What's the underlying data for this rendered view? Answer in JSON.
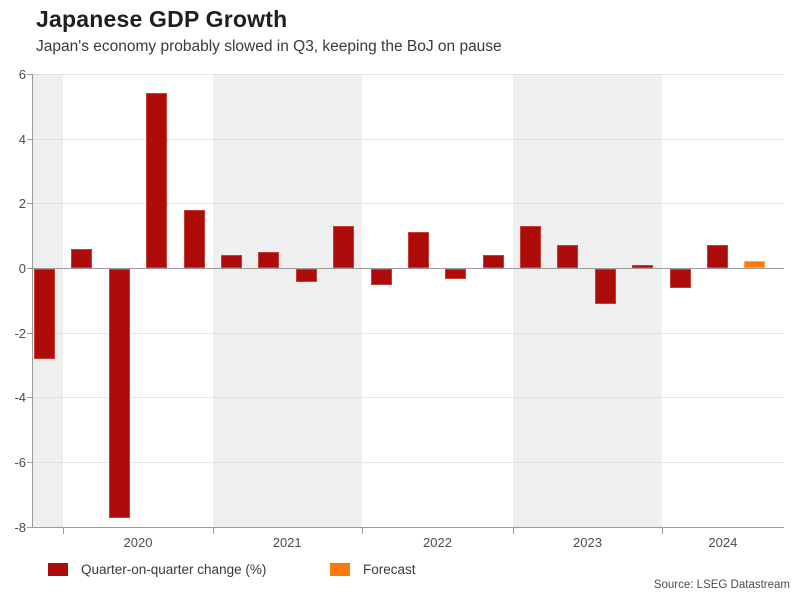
{
  "header": {
    "title": "Japanese GDP Growth",
    "subtitle": "Japan's economy probably slowed in Q3, keeping the BoJ on pause"
  },
  "legend": {
    "series_label": "Quarter-on-quarter change (%)",
    "forecast_label": "Forecast"
  },
  "source": "Source: LSEG Datastream",
  "colors": {
    "bar": "#AE0B0B",
    "forecast": "#FB7A0D",
    "year_band": "#EFEFEF",
    "axis": "#9B9B9B",
    "grid": "#D2D2D2",
    "title_text": "#1F1F1F",
    "tick_text": "#4D4D4D"
  },
  "chart_data": {
    "type": "bar",
    "title": "Japanese GDP Growth",
    "subtitle": "Japan's economy probably slowed in Q3, keeping the BoJ on pause",
    "ylabel": "Quarter-on-quarter change (%)",
    "ylim": [
      -8,
      6
    ],
    "y_ticks": [
      6,
      4,
      2,
      0,
      -2,
      -4,
      -6,
      -8
    ],
    "grid": "dotted-horizontal",
    "legend_position": "bottom",
    "x_year_labels": [
      "2020",
      "2021",
      "2022",
      "2023",
      "2024"
    ],
    "shaded_year_bands": [
      "2019",
      "2021",
      "2023"
    ],
    "categories": [
      "2019 Q4",
      "2020 Q1",
      "2020 Q2",
      "2020 Q3",
      "2020 Q4",
      "2021 Q1",
      "2021 Q2",
      "2021 Q3",
      "2021 Q4",
      "2022 Q1",
      "2022 Q2",
      "2022 Q3",
      "2022 Q4",
      "2023 Q1",
      "2023 Q2",
      "2023 Q3",
      "2023 Q4",
      "2024 Q1",
      "2024 Q2",
      "2024 Q3"
    ],
    "values": [
      -2.8,
      0.6,
      -7.7,
      5.4,
      1.8,
      0.4,
      0.5,
      -0.4,
      1.3,
      -0.5,
      1.1,
      -0.3,
      0.4,
      1.3,
      0.7,
      -1.1,
      0.1,
      -0.6,
      0.7,
      0.2
    ],
    "forecast_index": 19,
    "series": [
      {
        "name": "Quarter-on-quarter change (%)",
        "values": [
          -2.8,
          0.6,
          -7.7,
          5.4,
          1.8,
          0.4,
          0.5,
          -0.4,
          1.3,
          -0.5,
          1.1,
          -0.3,
          0.4,
          1.3,
          0.7,
          -1.1,
          0.1,
          -0.6,
          0.7,
          null
        ]
      },
      {
        "name": "Forecast",
        "values": [
          null,
          null,
          null,
          null,
          null,
          null,
          null,
          null,
          null,
          null,
          null,
          null,
          null,
          null,
          null,
          null,
          null,
          null,
          null,
          0.2
        ]
      }
    ]
  }
}
